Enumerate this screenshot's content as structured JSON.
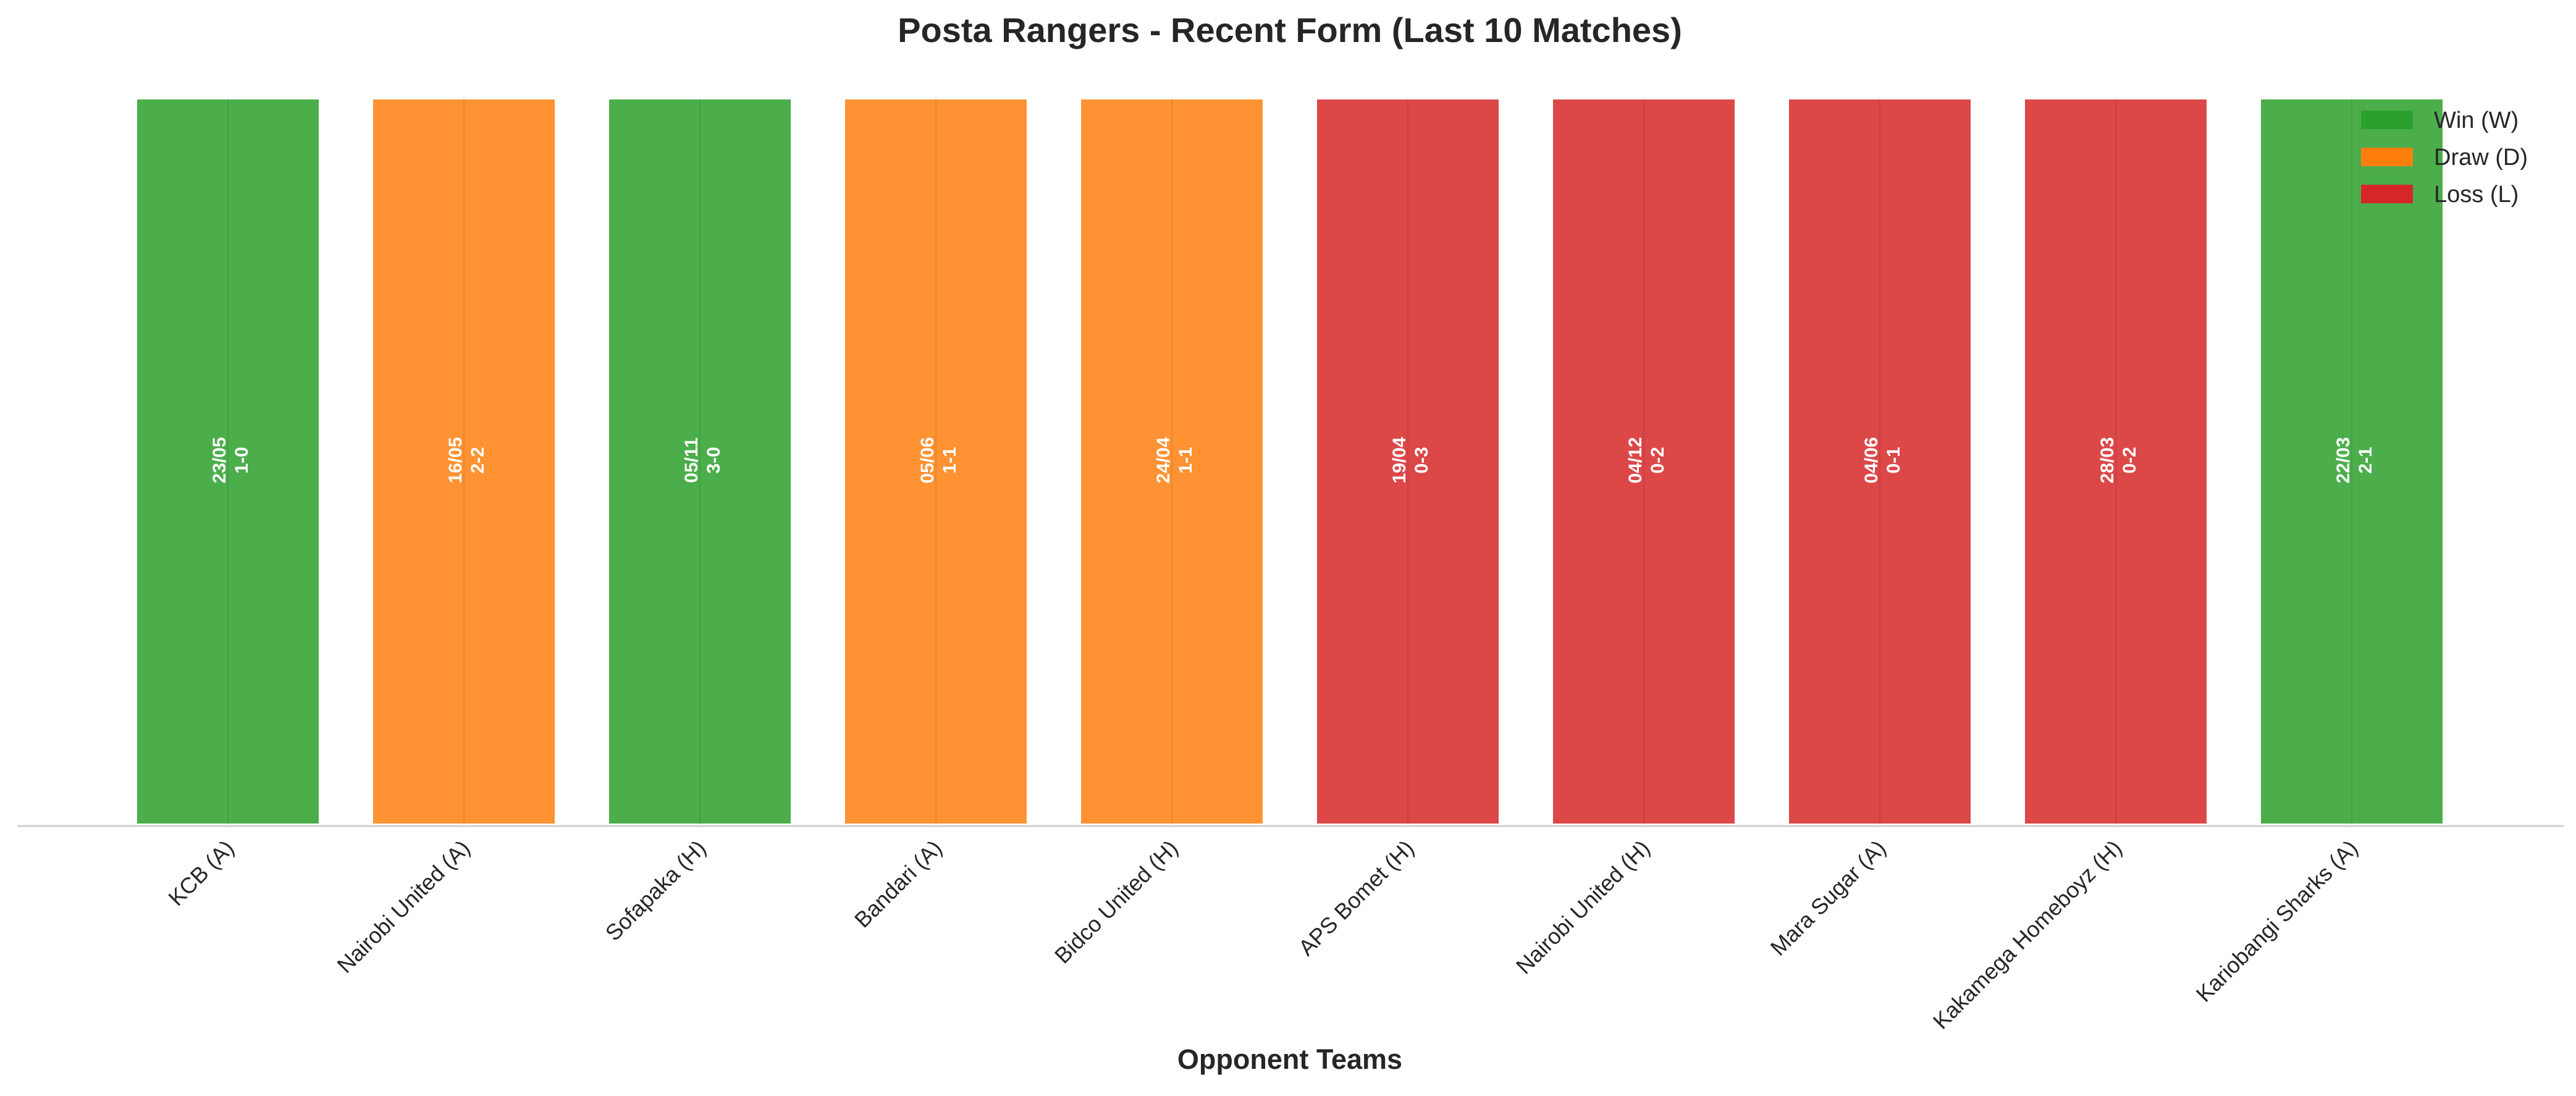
{
  "chart_data": {
    "type": "bar",
    "title": "Posta Rangers - Recent Form (Last 10 Matches)",
    "xlabel": "Opponent Teams",
    "ylabel": "",
    "ylim": [
      0,
      1
    ],
    "grid": false,
    "legend_position": "top-right",
    "categories": [
      "KCB (A)",
      "Nairobi United (A)",
      "Sofapaka (H)",
      "Bandari (A)",
      "Bidco United (H)",
      "APS Bomet (H)",
      "Nairobi United (H)",
      "Mara Sugar (A)",
      "Kakamega Homeboyz (H)",
      "Kariobangi Sharks (A)"
    ],
    "values": [
      1,
      1,
      1,
      1,
      1,
      1,
      1,
      1,
      1,
      1
    ],
    "results": [
      "W",
      "D",
      "W",
      "D",
      "D",
      "L",
      "L",
      "L",
      "L",
      "W"
    ],
    "dates": [
      "23/05",
      "16/05",
      "05/11",
      "05/06",
      "24/04",
      "19/04",
      "04/12",
      "04/06",
      "28/03",
      "22/03"
    ],
    "scores": [
      "1-0",
      "2-2",
      "3-0",
      "1-1",
      "1-1",
      "0-3",
      "0-2",
      "0-1",
      "0-2",
      "2-1"
    ],
    "legend": [
      {
        "key": "W",
        "label": "Win (W)",
        "color": "#2ca02c"
      },
      {
        "key": "D",
        "label": "Draw (D)",
        "color": "#ff7f0e"
      },
      {
        "key": "L",
        "label": "Loss (L)",
        "color": "#d62728"
      }
    ]
  }
}
